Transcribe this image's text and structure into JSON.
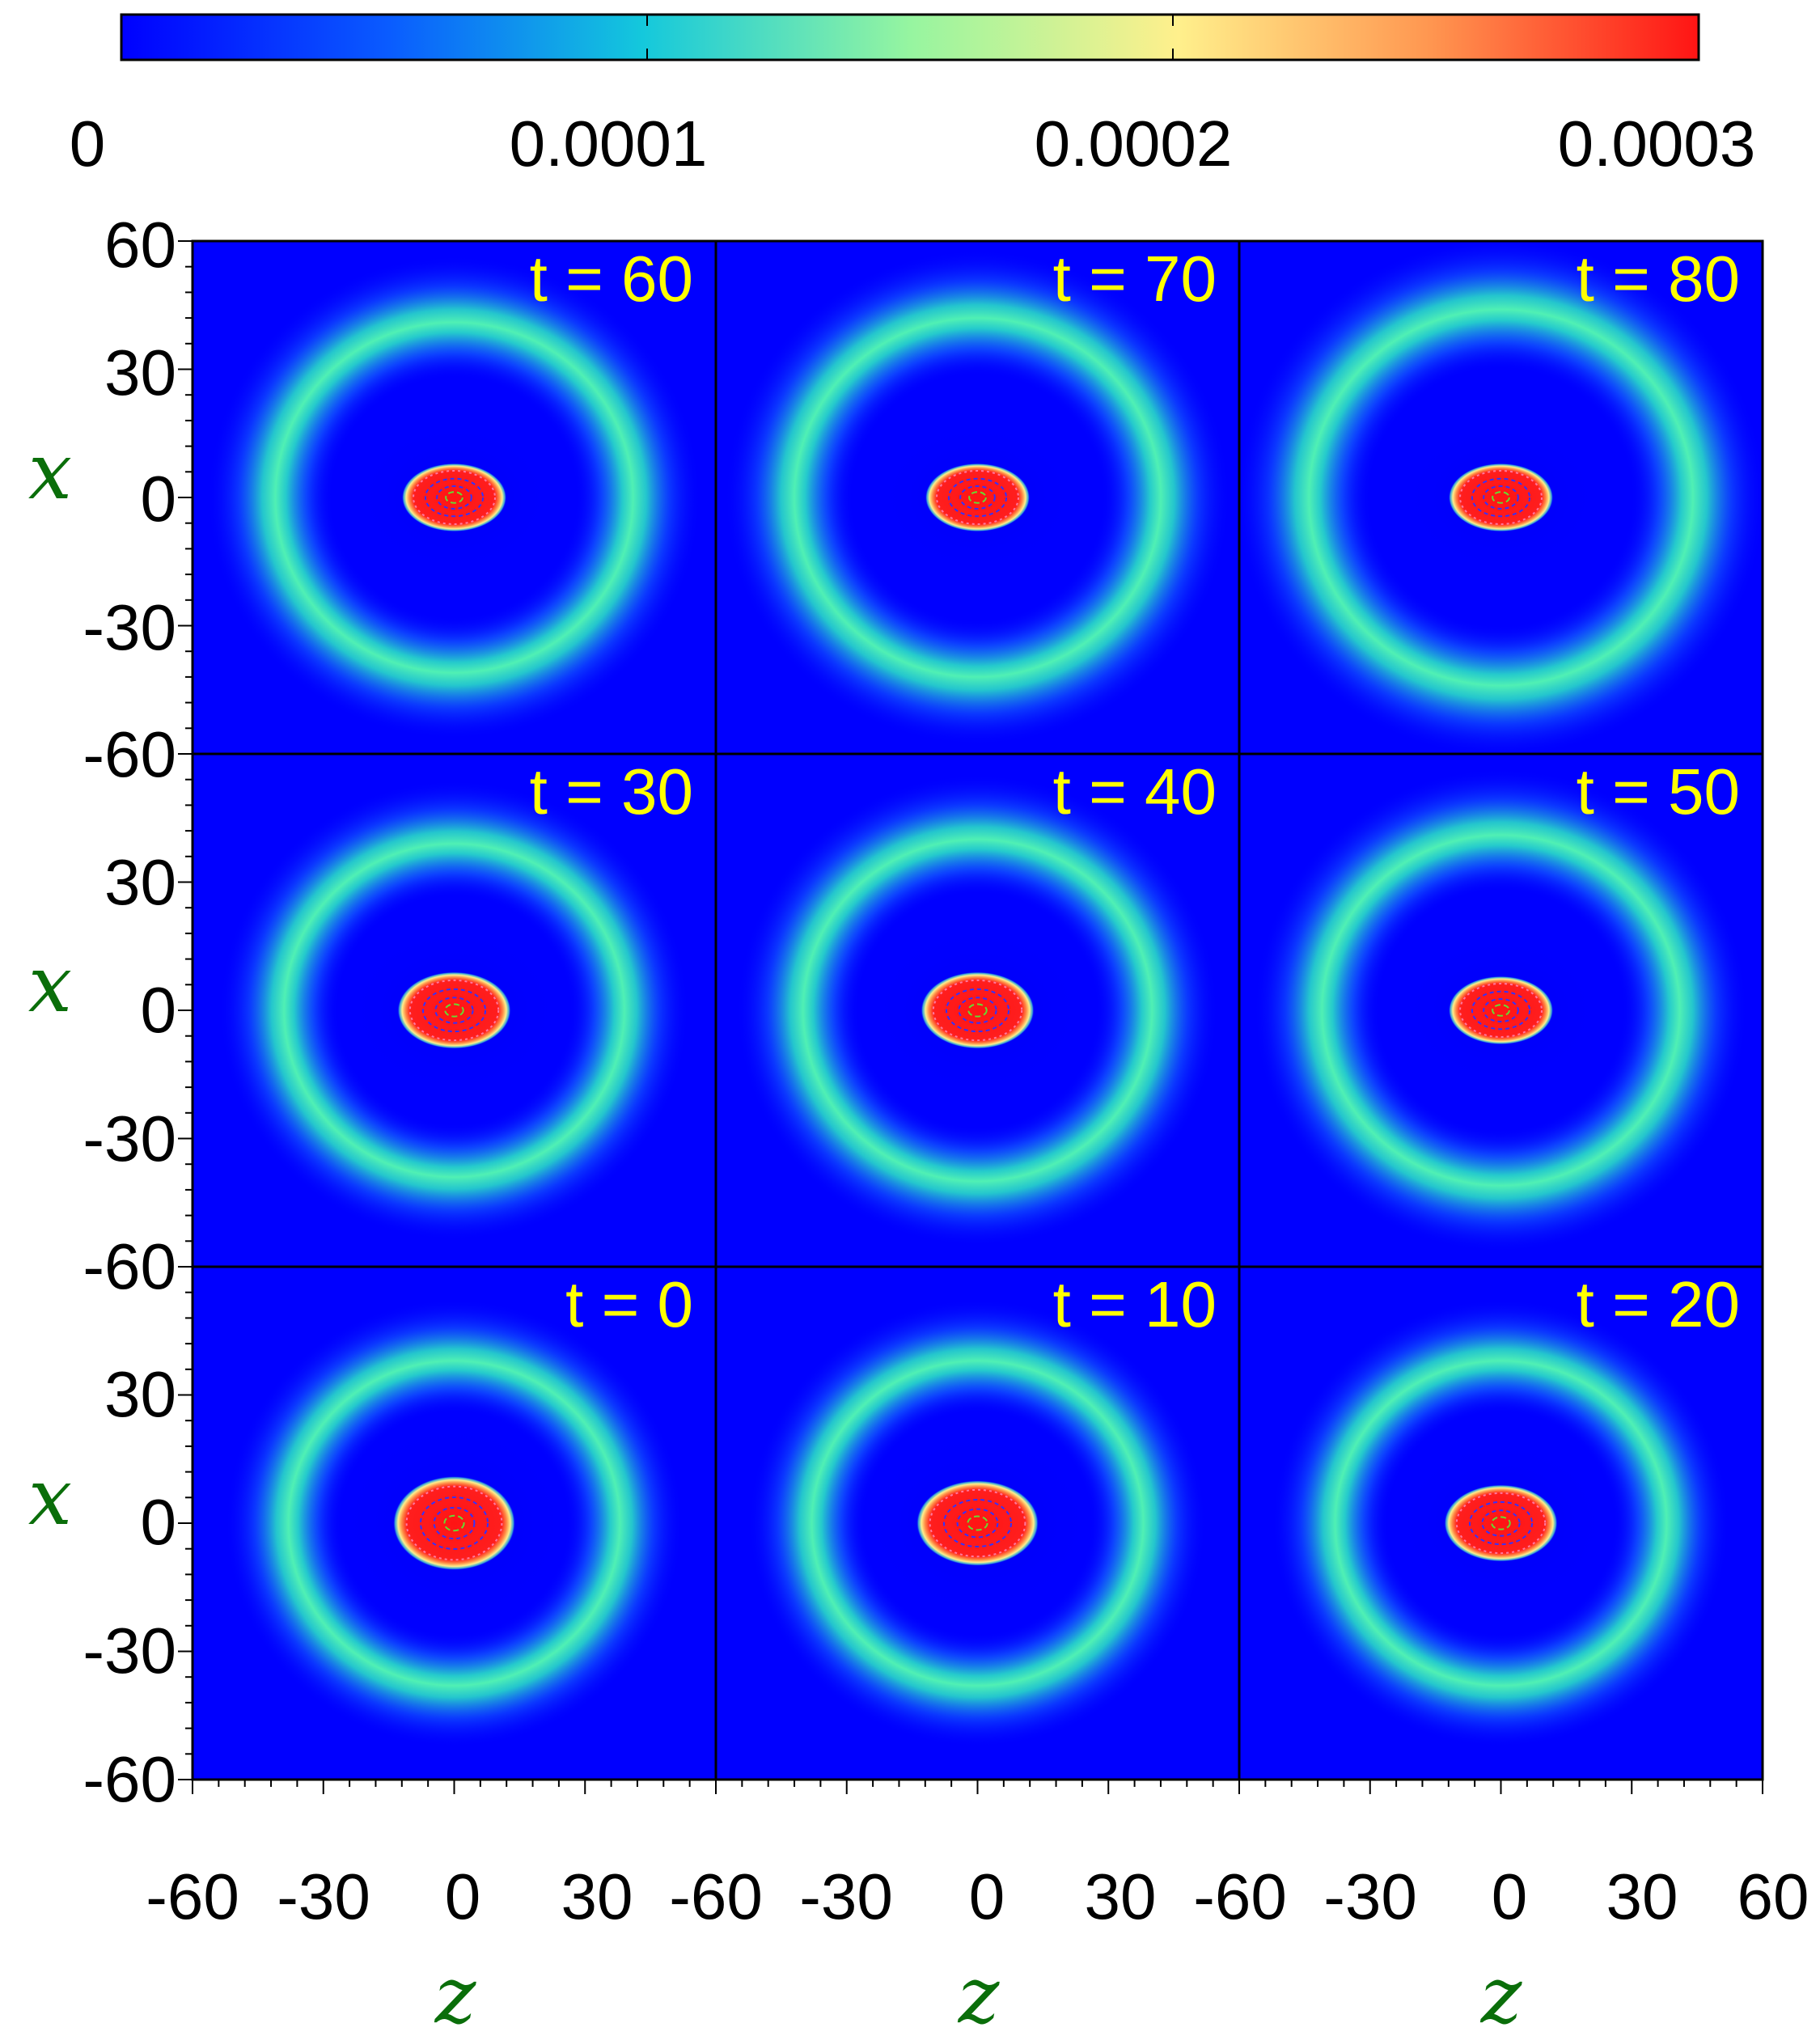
{
  "chart_data": {
    "type": "heatmap",
    "colorbar": {
      "ticks": [
        0,
        0.0001,
        0.0002,
        0.0003
      ],
      "tick_labels": [
        "0",
        "0.0001",
        "0.0002",
        "0.0003"
      ],
      "range": [
        0,
        0.0003
      ],
      "placement": "top",
      "colors": [
        "#0000ff",
        "#0a8cff",
        "#1ee6c8",
        "#96f5a0",
        "#fff08c",
        "#ffa050",
        "#ff1e1e"
      ]
    },
    "xlabel": "z",
    "ylabel": "x",
    "xlim": [
      -60,
      60
    ],
    "ylim": [
      -60,
      60
    ],
    "x_ticks": [
      "-60",
      "-30",
      "0",
      "30",
      "60"
    ],
    "y_ticks": [
      "60",
      "30",
      "0",
      "-30",
      "-60"
    ],
    "grid": false,
    "panels": [
      {
        "label": "t = 60",
        "t": 60,
        "core_rz": 12,
        "core_rx": 8,
        "ring_radius": 41
      },
      {
        "label": "t = 70",
        "t": 70,
        "core_rz": 12,
        "core_rx": 8,
        "ring_radius": 42
      },
      {
        "label": "t = 80",
        "t": 80,
        "core_rz": 12,
        "core_rx": 8,
        "ring_radius": 44
      },
      {
        "label": "t = 30",
        "t": 30,
        "core_rz": 13,
        "core_rx": 9,
        "ring_radius": 39
      },
      {
        "label": "t = 40",
        "t": 40,
        "core_rz": 13,
        "core_rx": 9,
        "ring_radius": 40
      },
      {
        "label": "t = 50",
        "t": 50,
        "core_rz": 12,
        "core_rx": 8,
        "ring_radius": 41
      },
      {
        "label": "t = 0",
        "t": 0,
        "core_rz": 14,
        "core_rx": 11,
        "ring_radius": 38
      },
      {
        "label": "t = 10",
        "t": 10,
        "core_rz": 14,
        "core_rx": 10,
        "ring_radius": 38
      },
      {
        "label": "t = 20",
        "t": 20,
        "core_rz": 13,
        "core_rx": 9,
        "ring_radius": 38
      }
    ]
  }
}
